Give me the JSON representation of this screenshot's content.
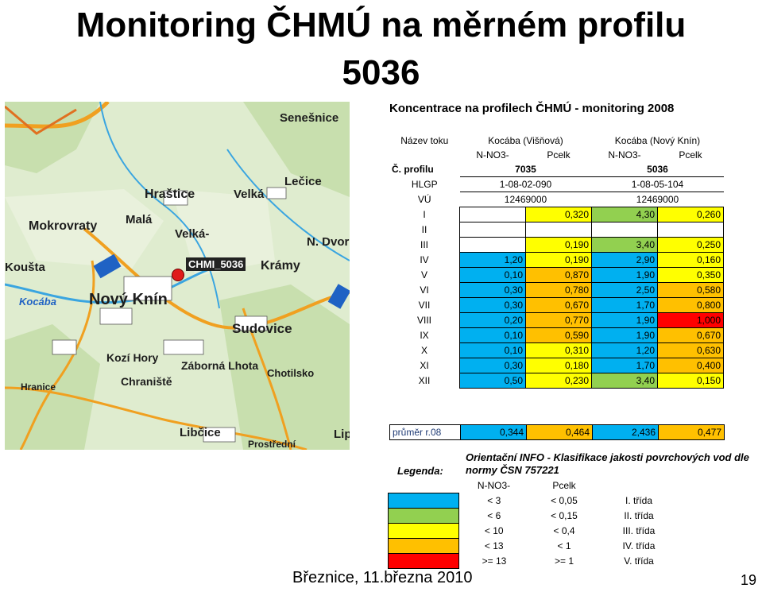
{
  "title_line1": "Monitoring ČHMÚ na měrném profilu",
  "title_line2": "5036",
  "map": {
    "station_label": "CHMI_5036",
    "places": [
      "Senešnice",
      "Hraštice",
      "Velká",
      "Lečice",
      "Mokrovraty",
      "Malá",
      "Velká-",
      "Krámy",
      "N. Dvor",
      "Koušta",
      "Kocába",
      "Nový Knín",
      "Sudovice",
      "Kozí Hory",
      "Chraniště",
      "Záborná Lhota",
      "Chotilsko",
      "Libčice",
      "Prostřední",
      "Hranice",
      "Lip"
    ]
  },
  "table": {
    "title": "Koncentrace na profilech ČHMÚ - monitoring 2008",
    "river_label": "Název toku",
    "river_1": "Kocába (Višňová)",
    "river_2": "Kocába (Nový Knín)",
    "sub_1a": "N-NO3-",
    "sub_1b": "Pcelk",
    "sub_2a": "N-NO3-",
    "sub_2b": "Pcelk",
    "profile_label": "Č. profilu",
    "profile_1": "7035",
    "profile_2": "5036",
    "hlgp_label": "HLGP",
    "hlgp_1": "1-08-02-090",
    "hlgp_2": "1-08-05-104",
    "vu_label": "VÚ",
    "vu_1": "12469000",
    "vu_2": "12469000",
    "rows": [
      {
        "m": "I",
        "a": "",
        "b": "0,320",
        "c": "4,30",
        "d": "0,260"
      },
      {
        "m": "II",
        "a": "",
        "b": "",
        "c": "",
        "d": ""
      },
      {
        "m": "III",
        "a": "",
        "b": "0,190",
        "c": "3,40",
        "d": "0,250"
      },
      {
        "m": "IV",
        "a": "1,20",
        "b": "0,190",
        "c": "2,90",
        "d": "0,160"
      },
      {
        "m": "V",
        "a": "0,10",
        "b": "0,870",
        "c": "1,90",
        "d": "0,350"
      },
      {
        "m": "VI",
        "a": "0,30",
        "b": "0,780",
        "c": "2,50",
        "d": "0,580"
      },
      {
        "m": "VII",
        "a": "0,30",
        "b": "0,670",
        "c": "1,70",
        "d": "0,800"
      },
      {
        "m": "VIII",
        "a": "0,20",
        "b": "0,770",
        "c": "1,90",
        "d": "1,000"
      },
      {
        "m": "IX",
        "a": "0,10",
        "b": "0,590",
        "c": "1,90",
        "d": "0,670"
      },
      {
        "m": "X",
        "a": "0,10",
        "b": "0,310",
        "c": "1,20",
        "d": "0,630"
      },
      {
        "m": "XI",
        "a": "0,30",
        "b": "0,180",
        "c": "1,70",
        "d": "0,400"
      },
      {
        "m": "XII",
        "a": "0,50",
        "b": "0,230",
        "c": "3,40",
        "d": "0,150"
      }
    ],
    "avg": {
      "m": "průměr r.08",
      "a": "0,344",
      "b": "0,464",
      "c": "2,436",
      "d": "0,477"
    }
  },
  "legend": {
    "title": "Orientační INFO - Klasifikace jakosti povrchových vod dle normy ČSN 757221",
    "label": "Legenda:",
    "col_a": "N-NO3-",
    "col_b": "Pcelk",
    "rows": [
      {
        "a": "< 3",
        "b": "< 0,05",
        "cls": "I. třída",
        "color": "#00b0f0"
      },
      {
        "a": "< 6",
        "b": "< 0,15",
        "cls": "II. třída",
        "color": "#92d050"
      },
      {
        "a": "< 10",
        "b": "< 0,4",
        "cls": "III. třída",
        "color": "#ffff00"
      },
      {
        "a": "< 13",
        "b": "< 1",
        "cls": "IV. třída",
        "color": "#ffc000"
      },
      {
        "a": ">= 13",
        "b": ">= 1",
        "cls": "V. třída",
        "color": "#ff0000"
      }
    ]
  },
  "footer": "Březnice, 11.března 2010",
  "page_number": "19",
  "colors": {
    "class1": "#00b0f0",
    "class2": "#92d050",
    "class3": "#ffff00",
    "class4": "#ffc000",
    "class5": "#ff0000"
  }
}
